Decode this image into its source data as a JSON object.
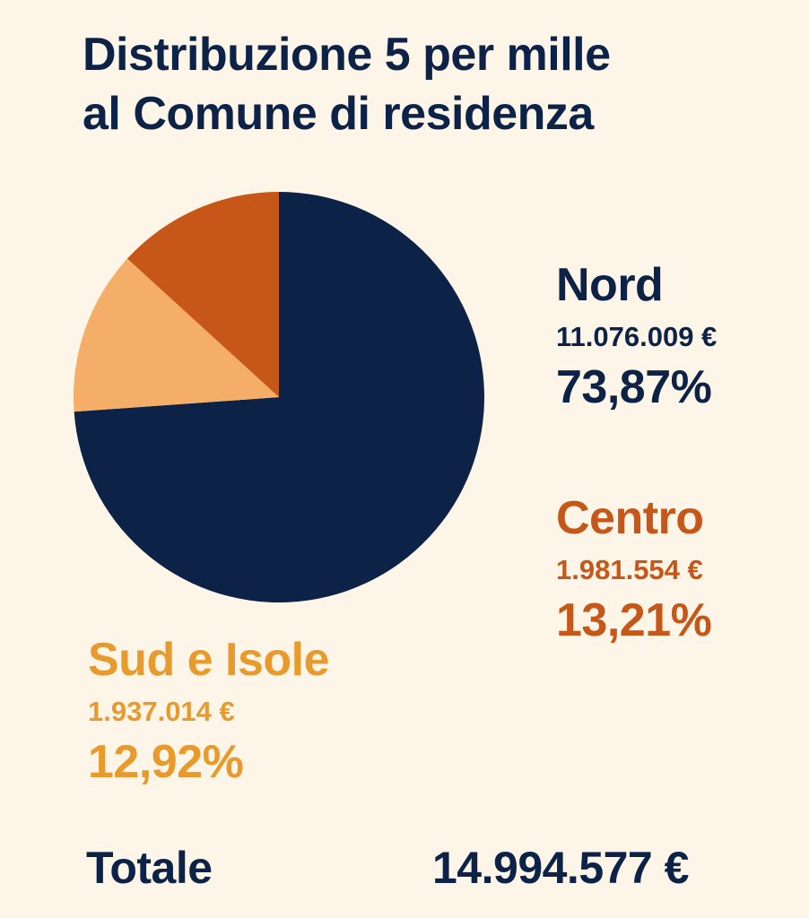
{
  "colors": {
    "background": "#fdf5e8",
    "title": "#0d2247",
    "nord": "#0d2247",
    "centro": "#c75719",
    "sud": "#f4ae68",
    "sud_text": "#e89a2c"
  },
  "title_lines": [
    "Distribuzione 5 per mille",
    "al Comune di residenza"
  ],
  "regions": {
    "nord": {
      "name": "Nord",
      "amount": "11.076.009 €",
      "pct": "73,87%"
    },
    "centro": {
      "name": "Centro",
      "amount": "1.981.554 €",
      "pct": "13,21%"
    },
    "sud": {
      "name": "Sud e Isole",
      "amount": "1.937.014 €",
      "pct": "12,92%"
    }
  },
  "totale": {
    "label": "Totale",
    "value": "14.994.577 €"
  },
  "chart_data": {
    "type": "pie",
    "title": "Distribuzione 5 per mille al Comune di residenza",
    "categories": [
      "Nord",
      "Sud e Isole",
      "Centro"
    ],
    "values": [
      11076009,
      1937014,
      1981554
    ],
    "percentages": [
      73.87,
      12.92,
      13.21
    ],
    "start": "top",
    "direction": "clockwise",
    "unit": "€"
  }
}
